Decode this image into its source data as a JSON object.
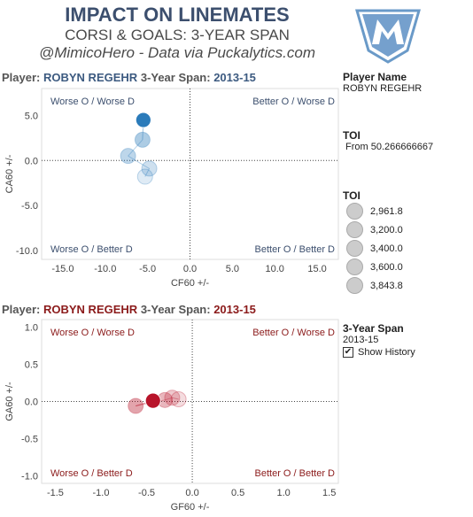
{
  "header": {
    "title": "IMPACT ON LINEMATES",
    "subtitle": "CORSI & GOALS: 3-YEAR SPAN",
    "credit": "@MimicoHero - Data via Puckalytics.com"
  },
  "colors": {
    "blue": "#2b7bba",
    "red": "#b8142a",
    "title": "#3c4f6e"
  },
  "panel1": {
    "prefix": "Player:",
    "player": "ROBYN REGEHR",
    "span_label": "3-Year Span:",
    "span": "2013-15",
    "q_tl": "Worse O / Worse D",
    "q_tr": "Better O / Worse D",
    "q_bl": "Worse O / Better D",
    "q_br": "Better O / Better D"
  },
  "panel2": {
    "prefix": "Player:",
    "player": "ROBYN REGEHR",
    "span_label": "3-Year Span:",
    "span": "2013-15",
    "q_tl": "Worse O / Worse D",
    "q_tr": "Better O / Worse D",
    "q_bl": "Worse O / Better D",
    "q_br": "Better O / Better D"
  },
  "side": {
    "player_name_h": "Player Name",
    "player_name": "ROBYN REGEHR",
    "toi_h": "TOI",
    "toi_filter": "From 50.266666667",
    "toi_legend_h": "TOI",
    "toi_legend": [
      "2,961.8",
      "3,200.0",
      "3,400.0",
      "3,600.0",
      "3,843.8"
    ],
    "span_h": "3-Year Span",
    "span": "2013-15",
    "show_history": "Show History",
    "check": "✔"
  },
  "chart_data": [
    {
      "type": "scatter",
      "xlabel": "CF60 +/-",
      "ylabel": "CA60 +/-",
      "xlim": [
        -17.5,
        17.5
      ],
      "ylim": [
        -11,
        8
      ],
      "xticks": [
        "-15.0",
        "-10.0",
        "-5.0",
        "0.0",
        "5.0",
        "10.0",
        "15.0"
      ],
      "xtick_values": [
        -15,
        -10,
        -5,
        0,
        5,
        10,
        15
      ],
      "yticks": [
        "5.0",
        "0.0",
        "-5.0",
        "-10.0"
      ],
      "ytick_values": [
        5,
        0,
        -5,
        -10
      ],
      "points": [
        {
          "x": -5.3,
          "y": -1.8,
          "highlight": false
        },
        {
          "x": -4.8,
          "y": -0.9,
          "highlight": false
        },
        {
          "x": -7.3,
          "y": 0.5,
          "highlight": false
        },
        {
          "x": -5.6,
          "y": 2.3,
          "highlight": false
        },
        {
          "x": -5.5,
          "y": 4.5,
          "highlight": true
        }
      ]
    },
    {
      "type": "scatter",
      "xlabel": "GF60 +/-",
      "ylabel": "GA60 +/-",
      "xlim": [
        -1.65,
        1.6
      ],
      "ylim": [
        -1.1,
        1.1
      ],
      "xticks": [
        "-1.5",
        "-1.0",
        "-0.5",
        "0.0",
        "0.5",
        "1.0",
        "1.5"
      ],
      "xtick_values": [
        -1.5,
        -1.0,
        -0.5,
        0,
        0.5,
        1.0,
        1.5
      ],
      "yticks": [
        "1.0",
        "0.5",
        "0.0",
        "-0.5",
        "-1.0"
      ],
      "ytick_values": [
        1.0,
        0.5,
        0,
        -0.5,
        -1.0
      ],
      "points": [
        {
          "x": -0.15,
          "y": 0.03,
          "highlight": false
        },
        {
          "x": -0.22,
          "y": 0.05,
          "highlight": false
        },
        {
          "x": -0.3,
          "y": 0.02,
          "highlight": false
        },
        {
          "x": -0.62,
          "y": -0.06,
          "highlight": false
        },
        {
          "x": -0.43,
          "y": 0.01,
          "highlight": true
        }
      ]
    }
  ]
}
